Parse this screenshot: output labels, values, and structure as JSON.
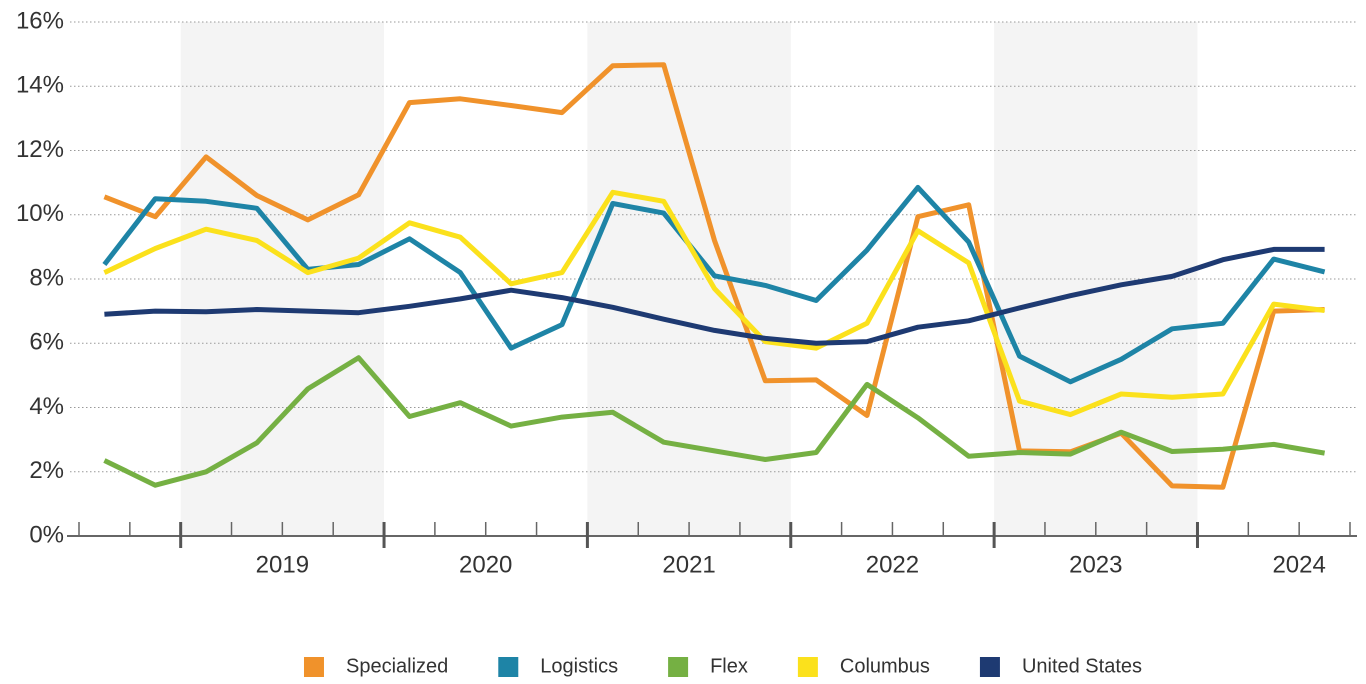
{
  "chart_data": {
    "type": "line",
    "x": [
      2018.625,
      2018.875,
      2019.125,
      2019.375,
      2019.625,
      2019.875,
      2020.125,
      2020.375,
      2020.625,
      2020.875,
      2021.125,
      2021.375,
      2021.625,
      2021.875,
      2022.125,
      2022.375,
      2022.625,
      2022.875,
      2023.125,
      2023.375,
      2023.625,
      2023.875,
      2024.125,
      2024.375,
      2024.625
    ],
    "xlim": [
      2018.5,
      2024.75
    ],
    "xticks": [
      {
        "value": 2019.5,
        "label": "2019"
      },
      {
        "value": 2020.5,
        "label": "2020"
      },
      {
        "value": 2021.5,
        "label": "2021"
      },
      {
        "value": 2022.5,
        "label": "2022"
      },
      {
        "value": 2023.5,
        "label": "2023"
      },
      {
        "value": 2024.5,
        "label": "2024"
      }
    ],
    "ylim": [
      0,
      16
    ],
    "yticks": [
      {
        "value": 0,
        "label": "0%"
      },
      {
        "value": 2,
        "label": "2%"
      },
      {
        "value": 4,
        "label": "4%"
      },
      {
        "value": 6,
        "label": "6%"
      },
      {
        "value": 8,
        "label": "8%"
      },
      {
        "value": 10,
        "label": "10%"
      },
      {
        "value": 12,
        "label": "12%"
      },
      {
        "value": 14,
        "label": "14%"
      },
      {
        "value": 16,
        "label": "16%"
      }
    ],
    "grid": true,
    "legend": "bottom",
    "series": [
      {
        "name": "Specialized",
        "color": "#f0922b",
        "values": [
          10.56,
          9.94,
          11.8,
          10.6,
          9.84,
          10.62,
          13.49,
          13.61,
          13.4,
          13.18,
          14.64,
          14.67,
          9.2,
          4.83,
          4.86,
          3.75,
          9.94,
          10.31,
          2.65,
          2.62,
          3.2,
          1.56,
          1.52,
          7.0,
          7.05
        ]
      },
      {
        "name": "Logistics",
        "color": "#1e84a6",
        "values": [
          8.45,
          10.5,
          10.42,
          10.2,
          8.3,
          8.45,
          9.25,
          8.2,
          5.85,
          6.58,
          10.35,
          10.05,
          8.1,
          7.8,
          7.33,
          8.9,
          10.85,
          9.15,
          5.6,
          4.8,
          5.5,
          6.45,
          6.62,
          8.62,
          8.22
        ]
      },
      {
        "name": "Flex",
        "color": "#75b043",
        "values": [
          2.35,
          1.58,
          2.0,
          2.9,
          4.58,
          5.55,
          3.72,
          4.15,
          3.42,
          3.7,
          3.85,
          2.92,
          2.65,
          2.38,
          2.6,
          4.72,
          3.68,
          2.48,
          2.6,
          2.55,
          3.23,
          2.63,
          2.7,
          2.85,
          2.58
        ]
      },
      {
        "name": "Columbus",
        "color": "#fbe11c",
        "values": [
          8.2,
          8.95,
          9.55,
          9.2,
          8.2,
          8.65,
          9.75,
          9.3,
          7.85,
          8.2,
          10.7,
          10.42,
          7.7,
          6.05,
          5.85,
          6.62,
          9.5,
          8.5,
          4.2,
          3.78,
          4.42,
          4.32,
          4.42,
          7.22,
          7.02
        ]
      },
      {
        "name": "United States",
        "color": "#1e3a72",
        "values": [
          6.9,
          7.0,
          6.98,
          7.05,
          7.0,
          6.95,
          7.15,
          7.38,
          7.65,
          7.42,
          7.12,
          6.75,
          6.4,
          6.15,
          6.0,
          6.05,
          6.5,
          6.7,
          7.1,
          7.48,
          7.82,
          8.08,
          8.6,
          8.92,
          8.92
        ]
      }
    ]
  }
}
